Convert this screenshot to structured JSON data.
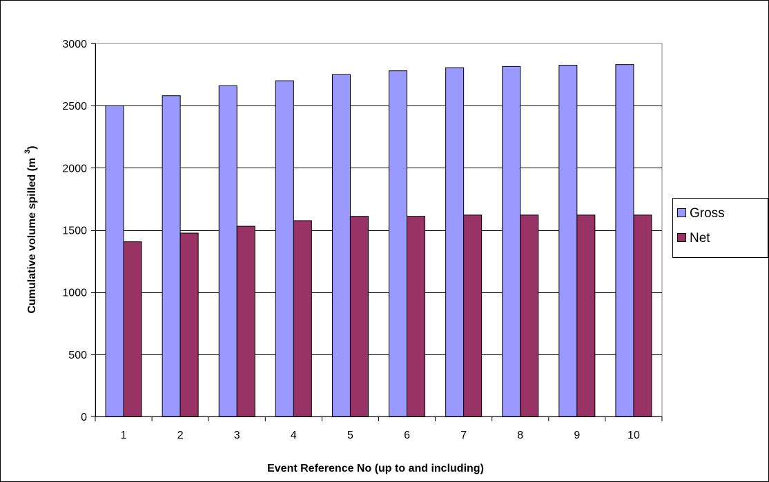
{
  "chart_data": {
    "type": "bar",
    "title": "",
    "xlabel": "Event Reference No (up to and including)",
    "ylabel": "Cumulative volume spilled (m",
    "ylabel_superscript": "3",
    "ylabel_close": ")",
    "categories": [
      "1",
      "2",
      "3",
      "4",
      "5",
      "6",
      "7",
      "8",
      "9",
      "10"
    ],
    "series": [
      {
        "name": "Gross",
        "color": "#9999ff",
        "values": [
          2500,
          2580,
          2660,
          2700,
          2750,
          2780,
          2805,
          2815,
          2825,
          2830
        ]
      },
      {
        "name": "Net",
        "color": "#993366",
        "values": [
          1405,
          1475,
          1530,
          1575,
          1610,
          1610,
          1620,
          1620,
          1620,
          1620
        ]
      }
    ],
    "ylim": [
      0,
      3000
    ],
    "yticks": [
      0,
      500,
      1000,
      1500,
      2000,
      2500,
      3000
    ],
    "grid": true,
    "plot_background": "#ffffff",
    "legend_position": "right"
  }
}
